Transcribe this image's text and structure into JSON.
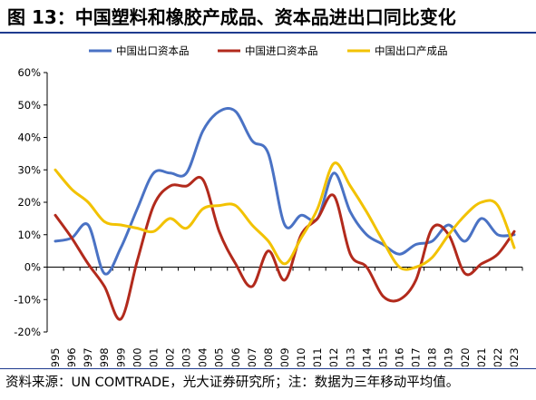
{
  "title": "图 13：中国塑料和橡胶产成品、资本品进出口同比变化",
  "source": "资料来源：UN COMTRADE，光大证券研究所；注：数据为三年移动平均值。",
  "chart_data": {
    "type": "line",
    "xlabel": "",
    "ylabel": "",
    "ylim": [
      -20,
      60
    ],
    "y_ticks": [
      "60%",
      "50%",
      "40%",
      "30%",
      "20%",
      "10%",
      "0%",
      "-10%",
      "-20%"
    ],
    "y_tick_values": [
      60,
      50,
      40,
      30,
      20,
      10,
      0,
      -10,
      -20
    ],
    "x": [
      "1995",
      "1996",
      "1997",
      "1998",
      "1999",
      "2000",
      "2001",
      "2002",
      "2003",
      "2004",
      "2005",
      "2006",
      "2007",
      "2008",
      "2009",
      "2010",
      "2011",
      "2012",
      "2013",
      "2014",
      "2015",
      "2016",
      "2017",
      "2018",
      "2019",
      "2020",
      "2021",
      "2022",
      "2023"
    ],
    "grid": false,
    "legend_position": "top",
    "series": [
      {
        "name": "中国出口资本品",
        "color": "#4a72c4",
        "values": [
          8,
          9,
          13,
          -2,
          6,
          18,
          29,
          29,
          29,
          42,
          48,
          48,
          39,
          35,
          13,
          16,
          15,
          29,
          17,
          10,
          7,
          4,
          7,
          8,
          13,
          8,
          15,
          10,
          10
        ]
      },
      {
        "name": "中国进口资本品",
        "color": "#b22a1c",
        "values": [
          16,
          9,
          1,
          -6,
          -16,
          2,
          19,
          25,
          25,
          27,
          11,
          1,
          -6,
          5,
          -4,
          10,
          15,
          22,
          4,
          0,
          -9,
          -10,
          -4,
          12,
          10,
          -2,
          1,
          4,
          11
        ]
      },
      {
        "name": "中国出口产成品",
        "color": "#f2c200",
        "values": [
          30,
          24,
          20,
          14,
          13,
          12,
          11,
          15,
          12,
          18,
          19,
          19,
          13,
          8,
          1,
          9,
          18,
          32,
          25,
          17,
          8,
          0,
          0,
          3,
          10,
          16,
          20,
          19,
          6
        ]
      }
    ]
  }
}
